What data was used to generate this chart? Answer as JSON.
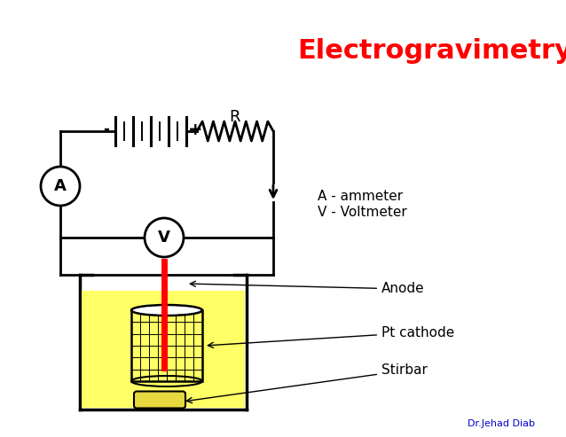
{
  "title": "Electrogravimetry",
  "title_color": "#ff0000",
  "title_fontsize": 22,
  "title_fontweight": "bold",
  "bg_color": "#ffffff",
  "label_ammeter": "A - ammeter",
  "label_voltmeter": "V - Voltmeter",
  "label_anode": "Anode",
  "label_cathode": "Pt cathode",
  "label_stirbar": "Stirbar",
  "label_resistor": "R",
  "label_author": "Dr.Jehad Diab",
  "author_color": "#0000cc",
  "circuit_color": "#000000",
  "anode_color": "#ff0000",
  "solution_color": "#ffff66",
  "minus_label": "-",
  "plus_label": "+",
  "figw": 6.38,
  "figh": 4.93,
  "dpi": 100
}
